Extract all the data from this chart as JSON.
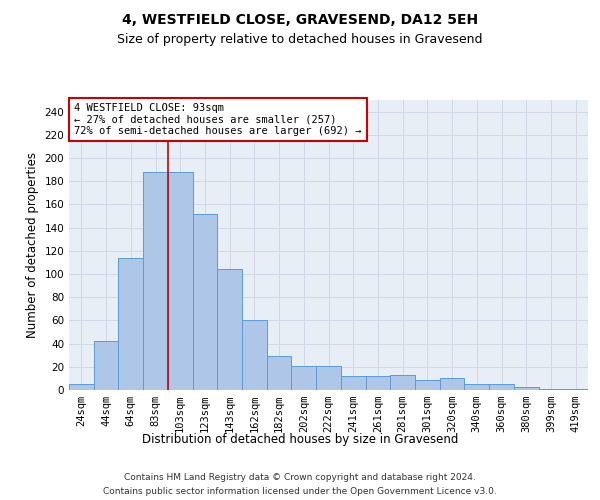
{
  "title1": "4, WESTFIELD CLOSE, GRAVESEND, DA12 5EH",
  "title2": "Size of property relative to detached houses in Gravesend",
  "xlabel": "Distribution of detached houses by size in Gravesend",
  "ylabel": "Number of detached properties",
  "categories": [
    "24sqm",
    "44sqm",
    "64sqm",
    "83sqm",
    "103sqm",
    "123sqm",
    "143sqm",
    "162sqm",
    "182sqm",
    "202sqm",
    "222sqm",
    "241sqm",
    "261sqm",
    "281sqm",
    "301sqm",
    "320sqm",
    "340sqm",
    "360sqm",
    "380sqm",
    "399sqm",
    "419sqm"
  ],
  "values": [
    5,
    42,
    114,
    188,
    188,
    152,
    104,
    60,
    29,
    21,
    21,
    12,
    12,
    13,
    9,
    10,
    5,
    5,
    3,
    1,
    1
  ],
  "bar_color": "#aec6e8",
  "bar_edge_color": "#5b9bd5",
  "grid_color": "#d0d8e8",
  "background_color": "#e8eef5",
  "annotation_line1": "4 WESTFIELD CLOSE: 93sqm",
  "annotation_line2": "← 27% of detached houses are smaller (257)",
  "annotation_line3": "72% of semi-detached houses are larger (692) →",
  "annotation_box_color": "#ffffff",
  "annotation_box_edge_color": "#cc0000",
  "vline_x_index": 3.5,
  "ylim": [
    0,
    250
  ],
  "yticks": [
    0,
    20,
    40,
    60,
    80,
    100,
    120,
    140,
    160,
    180,
    200,
    220,
    240
  ],
  "footer_line1": "Contains HM Land Registry data © Crown copyright and database right 2024.",
  "footer_line2": "Contains public sector information licensed under the Open Government Licence v3.0.",
  "title1_fontsize": 10,
  "title2_fontsize": 9,
  "xlabel_fontsize": 8.5,
  "ylabel_fontsize": 8.5,
  "tick_fontsize": 7.5,
  "annotation_fontsize": 7.5,
  "footer_fontsize": 6.5
}
